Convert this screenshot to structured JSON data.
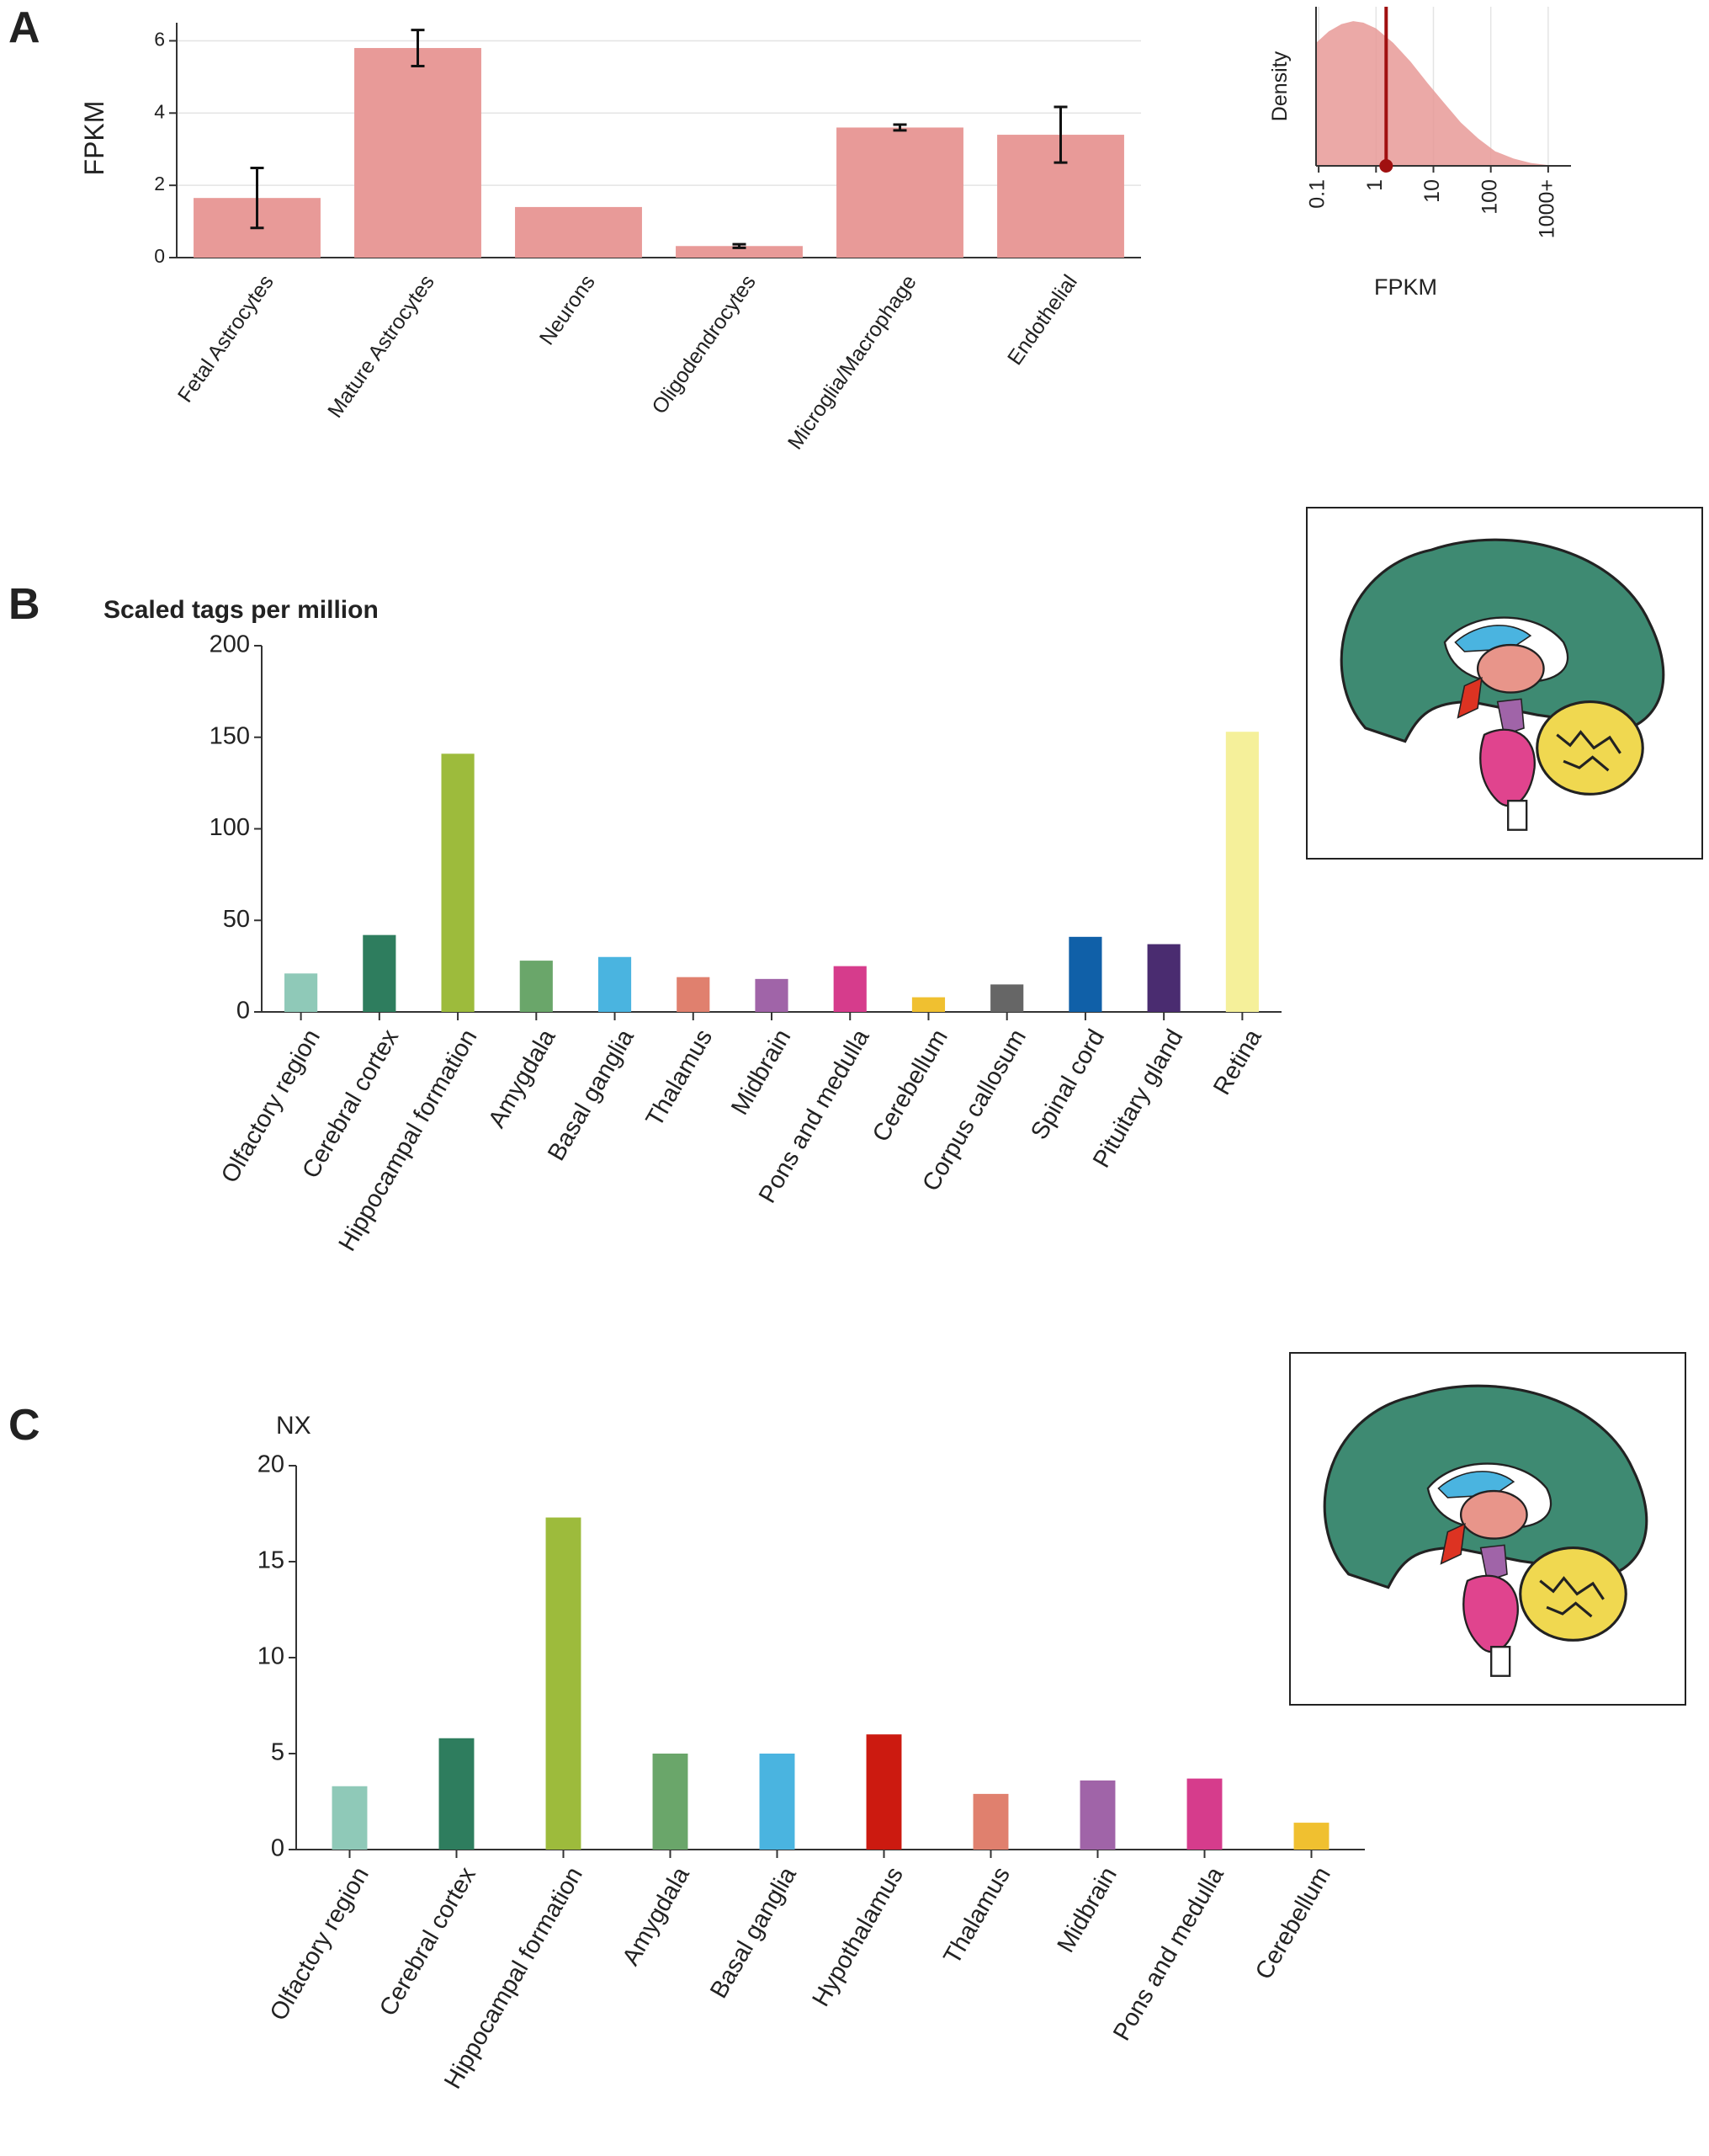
{
  "chart_data": [
    {
      "type": "bar",
      "panel": "A",
      "ylabel": "FPKM",
      "categories": [
        "Fetal Astrocytes",
        "Mature Astrocytes",
        "Neurons",
        "Oligodendrocytes",
        "Microglia/Macrophage",
        "Endothelial"
      ],
      "values": [
        1.65,
        5.8,
        1.4,
        0.32,
        3.6,
        3.4
      ],
      "errors": [
        0.83,
        0.5,
        null,
        0.05,
        0.08,
        0.77
      ],
      "color": "#e89a98",
      "ylim": [
        0,
        6.5
      ],
      "yticks": [
        0,
        2,
        4,
        6
      ],
      "grid": true
    },
    {
      "type": "area",
      "ylabel": "Density",
      "xlabel": "FPKM",
      "log_x": true,
      "x": [
        0.09,
        0.15,
        0.25,
        0.4,
        0.6,
        1,
        2,
        4,
        8,
        15,
        30,
        60,
        120,
        250,
        500,
        1000,
        1500
      ],
      "values": [
        0.85,
        0.93,
        0.98,
        1.0,
        0.99,
        0.95,
        0.85,
        0.72,
        0.57,
        0.44,
        0.3,
        0.19,
        0.1,
        0.05,
        0.02,
        0.005,
        0.0
      ],
      "marker": 1.5,
      "marker_color": "#a01010",
      "color": "#e89a98",
      "xlim": [
        0.09,
        2500
      ],
      "ylim": [
        0,
        1.1
      ],
      "xticks": [
        0.1,
        1,
        10,
        100,
        {
          "value": 1000,
          "label": "1000+"
        }
      ],
      "grid": true
    },
    {
      "type": "bar",
      "panel": "B",
      "title": "Scaled tags per million",
      "categories": [
        "Olfactory region",
        "Cerebral cortex",
        "Hippocampal formation",
        "Amygdala",
        "Basal ganglia",
        "Thalamus",
        "Midbrain",
        "Pons and medulla",
        "Cerebellum",
        "Corpus callosum",
        "Spinal cord",
        "Pituitary gland",
        "Retina"
      ],
      "values": [
        21,
        42,
        141,
        28,
        30,
        19,
        18,
        25,
        8,
        15,
        41,
        37,
        153
      ],
      "colors": [
        "#8fc9b8",
        "#2e7d5e",
        "#9dbb3c",
        "#6aa66a",
        "#4ab4e0",
        "#e0806e",
        "#a064a8",
        "#d63c8c",
        "#f0c030",
        "#666666",
        "#1060a8",
        "#4a2c70",
        "#f5f09a"
      ],
      "ylim": [
        0,
        200
      ],
      "yticks": [
        0,
        50,
        100,
        150,
        200
      ],
      "grid": false
    },
    {
      "type": "bar",
      "panel": "C",
      "title": "NX",
      "categories": [
        "Olfactory region",
        "Cerebral cortex",
        "Hippocampal formation",
        "Amygdala",
        "Basal ganglia",
        "Hypothalamus",
        "Thalamus",
        "Midbrain",
        "Pons and medulla",
        "Cerebellum"
      ],
      "values": [
        3.3,
        5.8,
        17.3,
        5.0,
        5.0,
        6.0,
        2.9,
        3.6,
        3.7,
        1.4
      ],
      "colors": [
        "#8fc9b8",
        "#2e7d5e",
        "#9dbb3c",
        "#6aa66a",
        "#4ab4e0",
        "#cc1a10",
        "#e0806e",
        "#a064a8",
        "#d63c8c",
        "#f0c030"
      ],
      "ylim": [
        0,
        20
      ],
      "yticks": [
        0,
        5,
        10,
        15,
        20
      ],
      "grid": false
    }
  ]
}
